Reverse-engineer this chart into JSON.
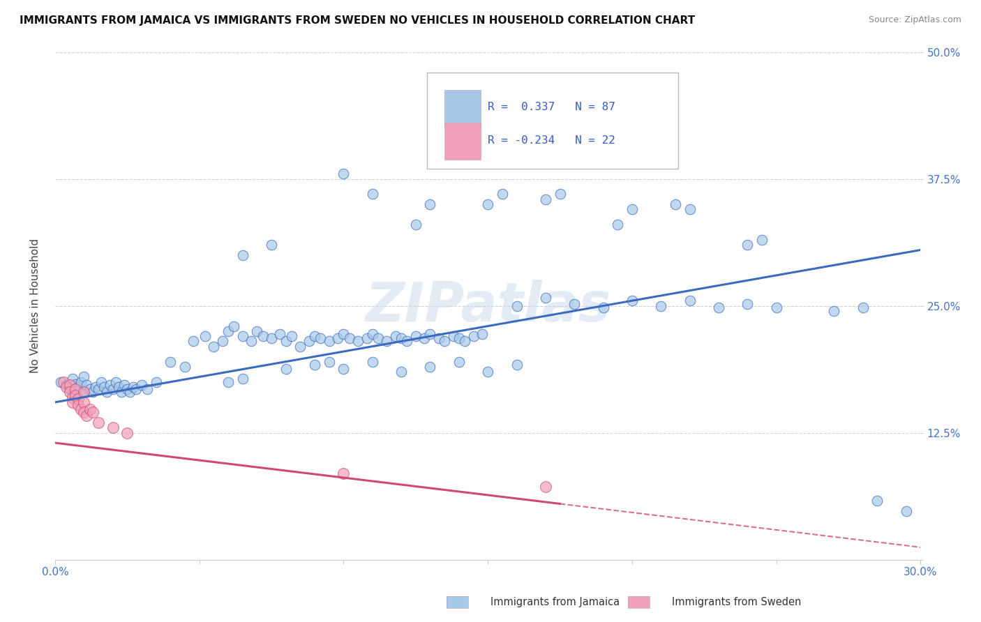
{
  "title": "IMMIGRANTS FROM JAMAICA VS IMMIGRANTS FROM SWEDEN NO VEHICLES IN HOUSEHOLD CORRELATION CHART",
  "source": "Source: ZipAtlas.com",
  "ylabel": "No Vehicles in Household",
  "x_ticks": [
    0.0,
    0.05,
    0.1,
    0.15,
    0.2,
    0.25,
    0.3
  ],
  "y_ticks": [
    0.0,
    0.125,
    0.25,
    0.375,
    0.5
  ],
  "xlim": [
    0.0,
    0.3
  ],
  "ylim": [
    0.0,
    0.5
  ],
  "legend_label1": "Immigrants from Jamaica",
  "legend_label2": "Immigrants from Sweden",
  "blue_color": "#a8c8e8",
  "pink_color": "#f0a0b8",
  "blue_line_color": "#3a6bbf",
  "pink_line_color": "#d04878",
  "watermark": "ZIPatlas",
  "background_color": "#ffffff",
  "grid_color": "#cccccc",
  "blue_points": [
    [
      0.002,
      0.175
    ],
    [
      0.004,
      0.172
    ],
    [
      0.005,
      0.168
    ],
    [
      0.006,
      0.178
    ],
    [
      0.007,
      0.173
    ],
    [
      0.008,
      0.17
    ],
    [
      0.009,
      0.175
    ],
    [
      0.01,
      0.18
    ],
    [
      0.01,
      0.165
    ],
    [
      0.011,
      0.172
    ],
    [
      0.012,
      0.168
    ],
    [
      0.013,
      0.165
    ],
    [
      0.014,
      0.17
    ],
    [
      0.015,
      0.168
    ],
    [
      0.016,
      0.175
    ],
    [
      0.017,
      0.17
    ],
    [
      0.018,
      0.165
    ],
    [
      0.019,
      0.172
    ],
    [
      0.02,
      0.168
    ],
    [
      0.021,
      0.175
    ],
    [
      0.022,
      0.17
    ],
    [
      0.023,
      0.165
    ],
    [
      0.024,
      0.172
    ],
    [
      0.025,
      0.168
    ],
    [
      0.026,
      0.165
    ],
    [
      0.027,
      0.17
    ],
    [
      0.028,
      0.168
    ],
    [
      0.03,
      0.172
    ],
    [
      0.032,
      0.168
    ],
    [
      0.035,
      0.175
    ],
    [
      0.04,
      0.195
    ],
    [
      0.045,
      0.19
    ],
    [
      0.048,
      0.215
    ],
    [
      0.052,
      0.22
    ],
    [
      0.055,
      0.21
    ],
    [
      0.058,
      0.215
    ],
    [
      0.06,
      0.225
    ],
    [
      0.062,
      0.23
    ],
    [
      0.065,
      0.22
    ],
    [
      0.068,
      0.215
    ],
    [
      0.07,
      0.225
    ],
    [
      0.072,
      0.22
    ],
    [
      0.075,
      0.218
    ],
    [
      0.078,
      0.222
    ],
    [
      0.08,
      0.215
    ],
    [
      0.082,
      0.22
    ],
    [
      0.085,
      0.21
    ],
    [
      0.088,
      0.215
    ],
    [
      0.09,
      0.22
    ],
    [
      0.092,
      0.218
    ],
    [
      0.095,
      0.215
    ],
    [
      0.098,
      0.218
    ],
    [
      0.1,
      0.222
    ],
    [
      0.102,
      0.218
    ],
    [
      0.105,
      0.215
    ],
    [
      0.108,
      0.218
    ],
    [
      0.11,
      0.222
    ],
    [
      0.112,
      0.218
    ],
    [
      0.115,
      0.215
    ],
    [
      0.118,
      0.22
    ],
    [
      0.12,
      0.218
    ],
    [
      0.122,
      0.215
    ],
    [
      0.125,
      0.22
    ],
    [
      0.128,
      0.218
    ],
    [
      0.13,
      0.222
    ],
    [
      0.133,
      0.218
    ],
    [
      0.135,
      0.215
    ],
    [
      0.138,
      0.22
    ],
    [
      0.14,
      0.218
    ],
    [
      0.142,
      0.215
    ],
    [
      0.145,
      0.22
    ],
    [
      0.148,
      0.222
    ],
    [
      0.06,
      0.175
    ],
    [
      0.065,
      0.178
    ],
    [
      0.08,
      0.188
    ],
    [
      0.09,
      0.192
    ],
    [
      0.095,
      0.195
    ],
    [
      0.1,
      0.188
    ],
    [
      0.11,
      0.195
    ],
    [
      0.12,
      0.185
    ],
    [
      0.13,
      0.19
    ],
    [
      0.14,
      0.195
    ],
    [
      0.15,
      0.185
    ],
    [
      0.16,
      0.192
    ],
    [
      0.065,
      0.3
    ],
    [
      0.075,
      0.31
    ],
    [
      0.1,
      0.38
    ],
    [
      0.11,
      0.36
    ],
    [
      0.125,
      0.33
    ],
    [
      0.13,
      0.35
    ],
    [
      0.15,
      0.35
    ],
    [
      0.155,
      0.36
    ],
    [
      0.17,
      0.355
    ],
    [
      0.175,
      0.36
    ],
    [
      0.195,
      0.33
    ],
    [
      0.2,
      0.345
    ],
    [
      0.215,
      0.35
    ],
    [
      0.22,
      0.345
    ],
    [
      0.24,
      0.31
    ],
    [
      0.245,
      0.315
    ],
    [
      0.27,
      0.245
    ],
    [
      0.28,
      0.248
    ],
    [
      0.16,
      0.25
    ],
    [
      0.17,
      0.258
    ],
    [
      0.18,
      0.252
    ],
    [
      0.19,
      0.248
    ],
    [
      0.2,
      0.255
    ],
    [
      0.21,
      0.25
    ],
    [
      0.22,
      0.255
    ],
    [
      0.23,
      0.248
    ],
    [
      0.24,
      0.252
    ],
    [
      0.25,
      0.248
    ],
    [
      0.285,
      0.058
    ],
    [
      0.295,
      0.048
    ]
  ],
  "pink_points": [
    [
      0.003,
      0.175
    ],
    [
      0.004,
      0.17
    ],
    [
      0.005,
      0.172
    ],
    [
      0.005,
      0.165
    ],
    [
      0.006,
      0.16
    ],
    [
      0.006,
      0.155
    ],
    [
      0.007,
      0.168
    ],
    [
      0.007,
      0.162
    ],
    [
      0.008,
      0.158
    ],
    [
      0.008,
      0.152
    ],
    [
      0.009,
      0.148
    ],
    [
      0.01,
      0.165
    ],
    [
      0.01,
      0.155
    ],
    [
      0.01,
      0.145
    ],
    [
      0.011,
      0.142
    ],
    [
      0.012,
      0.148
    ],
    [
      0.013,
      0.145
    ],
    [
      0.015,
      0.135
    ],
    [
      0.02,
      0.13
    ],
    [
      0.025,
      0.125
    ],
    [
      0.1,
      0.085
    ],
    [
      0.17,
      0.072
    ]
  ]
}
